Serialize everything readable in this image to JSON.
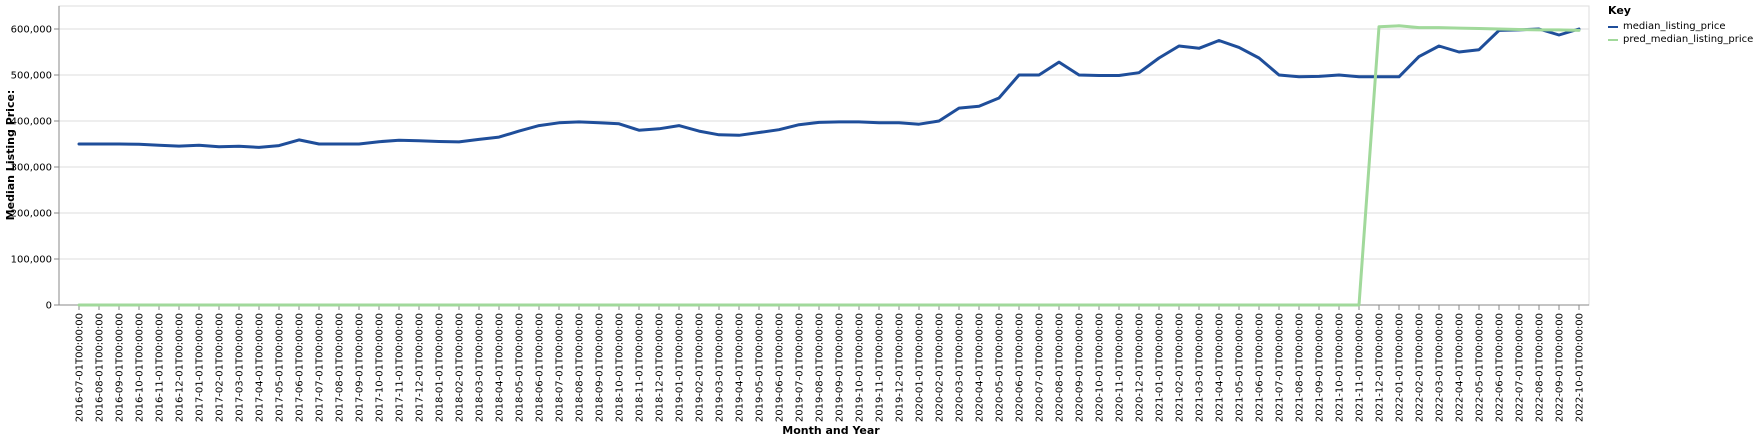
{
  "chart_data": {
    "type": "line",
    "xlabel": "Month and Year",
    "ylabel": "Median Listing Price:",
    "ylim": [
      0,
      650000
    ],
    "y_ticks": [
      "0",
      "100,000",
      "200,000",
      "300,000",
      "400,000",
      "500,000",
      "600,000"
    ],
    "grid": true,
    "legend_position": "top-right",
    "legend_title": "Key",
    "x": [
      "2016-07-01T00:00:00",
      "2016-08-01T00:00:00",
      "2016-09-01T00:00:00",
      "2016-10-01T00:00:00",
      "2016-11-01T00:00:00",
      "2016-12-01T00:00:00",
      "2017-01-01T00:00:00",
      "2017-02-01T00:00:00",
      "2017-03-01T00:00:00",
      "2017-04-01T00:00:00",
      "2017-05-01T00:00:00",
      "2017-06-01T00:00:00",
      "2017-07-01T00:00:00",
      "2017-08-01T00:00:00",
      "2017-09-01T00:00:00",
      "2017-10-01T00:00:00",
      "2017-11-01T00:00:00",
      "2017-12-01T00:00:00",
      "2018-01-01T00:00:00",
      "2018-02-01T00:00:00",
      "2018-03-01T00:00:00",
      "2018-04-01T00:00:00",
      "2018-05-01T00:00:00",
      "2018-06-01T00:00:00",
      "2018-07-01T00:00:00",
      "2018-08-01T00:00:00",
      "2018-09-01T00:00:00",
      "2018-10-01T00:00:00",
      "2018-11-01T00:00:00",
      "2018-12-01T00:00:00",
      "2019-01-01T00:00:00",
      "2019-02-01T00:00:00",
      "2019-03-01T00:00:00",
      "2019-04-01T00:00:00",
      "2019-05-01T00:00:00",
      "2019-06-01T00:00:00",
      "2019-07-01T00:00:00",
      "2019-08-01T00:00:00",
      "2019-09-01T00:00:00",
      "2019-10-01T00:00:00",
      "2019-11-01T00:00:00",
      "2019-12-01T00:00:00",
      "2020-01-01T00:00:00",
      "2020-02-01T00:00:00",
      "2020-03-01T00:00:00",
      "2020-04-01T00:00:00",
      "2020-05-01T00:00:00",
      "2020-06-01T00:00:00",
      "2020-07-01T00:00:00",
      "2020-08-01T00:00:00",
      "2020-09-01T00:00:00",
      "2020-10-01T00:00:00",
      "2020-11-01T00:00:00",
      "2020-12-01T00:00:00",
      "2021-01-01T00:00:00",
      "2021-02-01T00:00:00",
      "2021-03-01T00:00:00",
      "2021-04-01T00:00:00",
      "2021-05-01T00:00:00",
      "2021-06-01T00:00:00",
      "2021-07-01T00:00:00",
      "2021-08-01T00:00:00",
      "2021-09-01T00:00:00",
      "2021-10-01T00:00:00",
      "2021-11-01T00:00:00",
      "2021-12-01T00:00:00",
      "2022-01-01T00:00:00",
      "2022-02-01T00:00:00",
      "2022-03-01T00:00:00",
      "2022-04-01T00:00:00",
      "2022-05-01T00:00:00",
      "2022-06-01T00:00:00",
      "2022-07-01T00:00:00",
      "2022-08-01T00:00:00",
      "2022-09-01T00:00:00",
      "2022-10-01T00:00:00"
    ],
    "series": [
      {
        "name": "median_listing_price",
        "color": "#1f4e9a",
        "values": [
          349900,
          349900,
          350000,
          349500,
          347500,
          345500,
          347500,
          344000,
          345000,
          342500,
          346500,
          359000,
          349900,
          349900,
          349900,
          355000,
          358000,
          357000,
          355500,
          354500,
          360000,
          365000,
          378000,
          390000,
          396000,
          398000,
          396000,
          394000,
          380000,
          383000,
          390000,
          378000,
          370000,
          369000,
          375000,
          381000,
          392000,
          397000,
          398000,
          398000,
          396000,
          396000,
          393000,
          400000,
          428000,
          432000,
          450000,
          500000,
          500000,
          528000,
          500000,
          499000,
          499000,
          505000,
          537000,
          563000,
          558000,
          575000,
          560000,
          537000,
          500000,
          496000,
          497000,
          500000,
          496000,
          496000,
          496000,
          540000,
          563000,
          550000,
          555000,
          597000,
          598000,
          600000,
          587000,
          600000
        ]
      },
      {
        "name": "pred_median_listing_price",
        "color": "#a1d99b",
        "values": [
          0,
          0,
          0,
          0,
          0,
          0,
          0,
          0,
          0,
          0,
          0,
          0,
          0,
          0,
          0,
          0,
          0,
          0,
          0,
          0,
          0,
          0,
          0,
          0,
          0,
          0,
          0,
          0,
          0,
          0,
          0,
          0,
          0,
          0,
          0,
          0,
          0,
          0,
          0,
          0,
          0,
          0,
          0,
          0,
          0,
          0,
          0,
          0,
          0,
          0,
          0,
          0,
          0,
          0,
          0,
          0,
          0,
          0,
          0,
          0,
          0,
          0,
          0,
          0,
          0,
          605000,
          607000,
          603000,
          603000,
          602000,
          601000,
          600000,
          599000,
          598000,
          598000,
          597000
        ]
      }
    ]
  }
}
